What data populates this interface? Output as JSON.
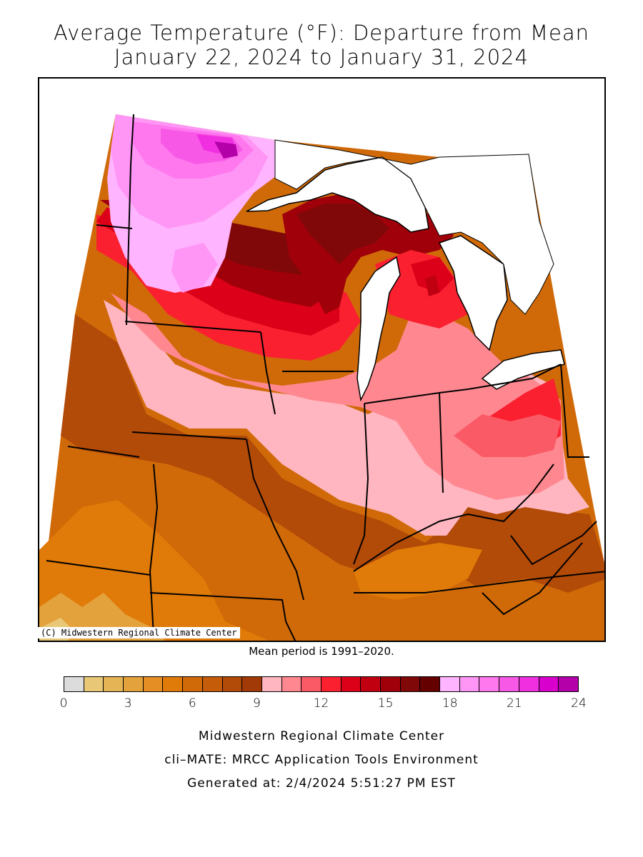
{
  "title": {
    "line1": "Average Temperature (°F): Departure from Mean",
    "line2": "January 22, 2024 to January 31, 2024"
  },
  "map": {
    "copyright": "(C) Midwestern Regional Climate Center",
    "region": "Midwest United States"
  },
  "mean_period": "Mean period is 1991–2020.",
  "legend": {
    "colors": [
      "#dcdcdc",
      "#e8c877",
      "#e4b455",
      "#e4a23c",
      "#e48e23",
      "#e07a08",
      "#d06a08",
      "#c45c0a",
      "#b24a08",
      "#a23a08",
      "#ffb6c1",
      "#ff8890",
      "#fa5a66",
      "#fa2030",
      "#dc0018",
      "#c00010",
      "#a0000a",
      "#800808",
      "#640000",
      "#ffb4ff",
      "#ff96f6",
      "#ff78ee",
      "#f858e6",
      "#f030e0",
      "#d800cc",
      "#b400a8"
    ],
    "tick_labels": [
      "0",
      "3",
      "6",
      "9",
      "12",
      "15",
      "18",
      "21",
      "24"
    ]
  },
  "footer": {
    "line1": "Midwestern Regional Climate Center",
    "line2": "cli–MATE: MRCC Application Tools Environment",
    "line3": "Generated at: 2/4/2024 5:51:27 PM EST"
  }
}
